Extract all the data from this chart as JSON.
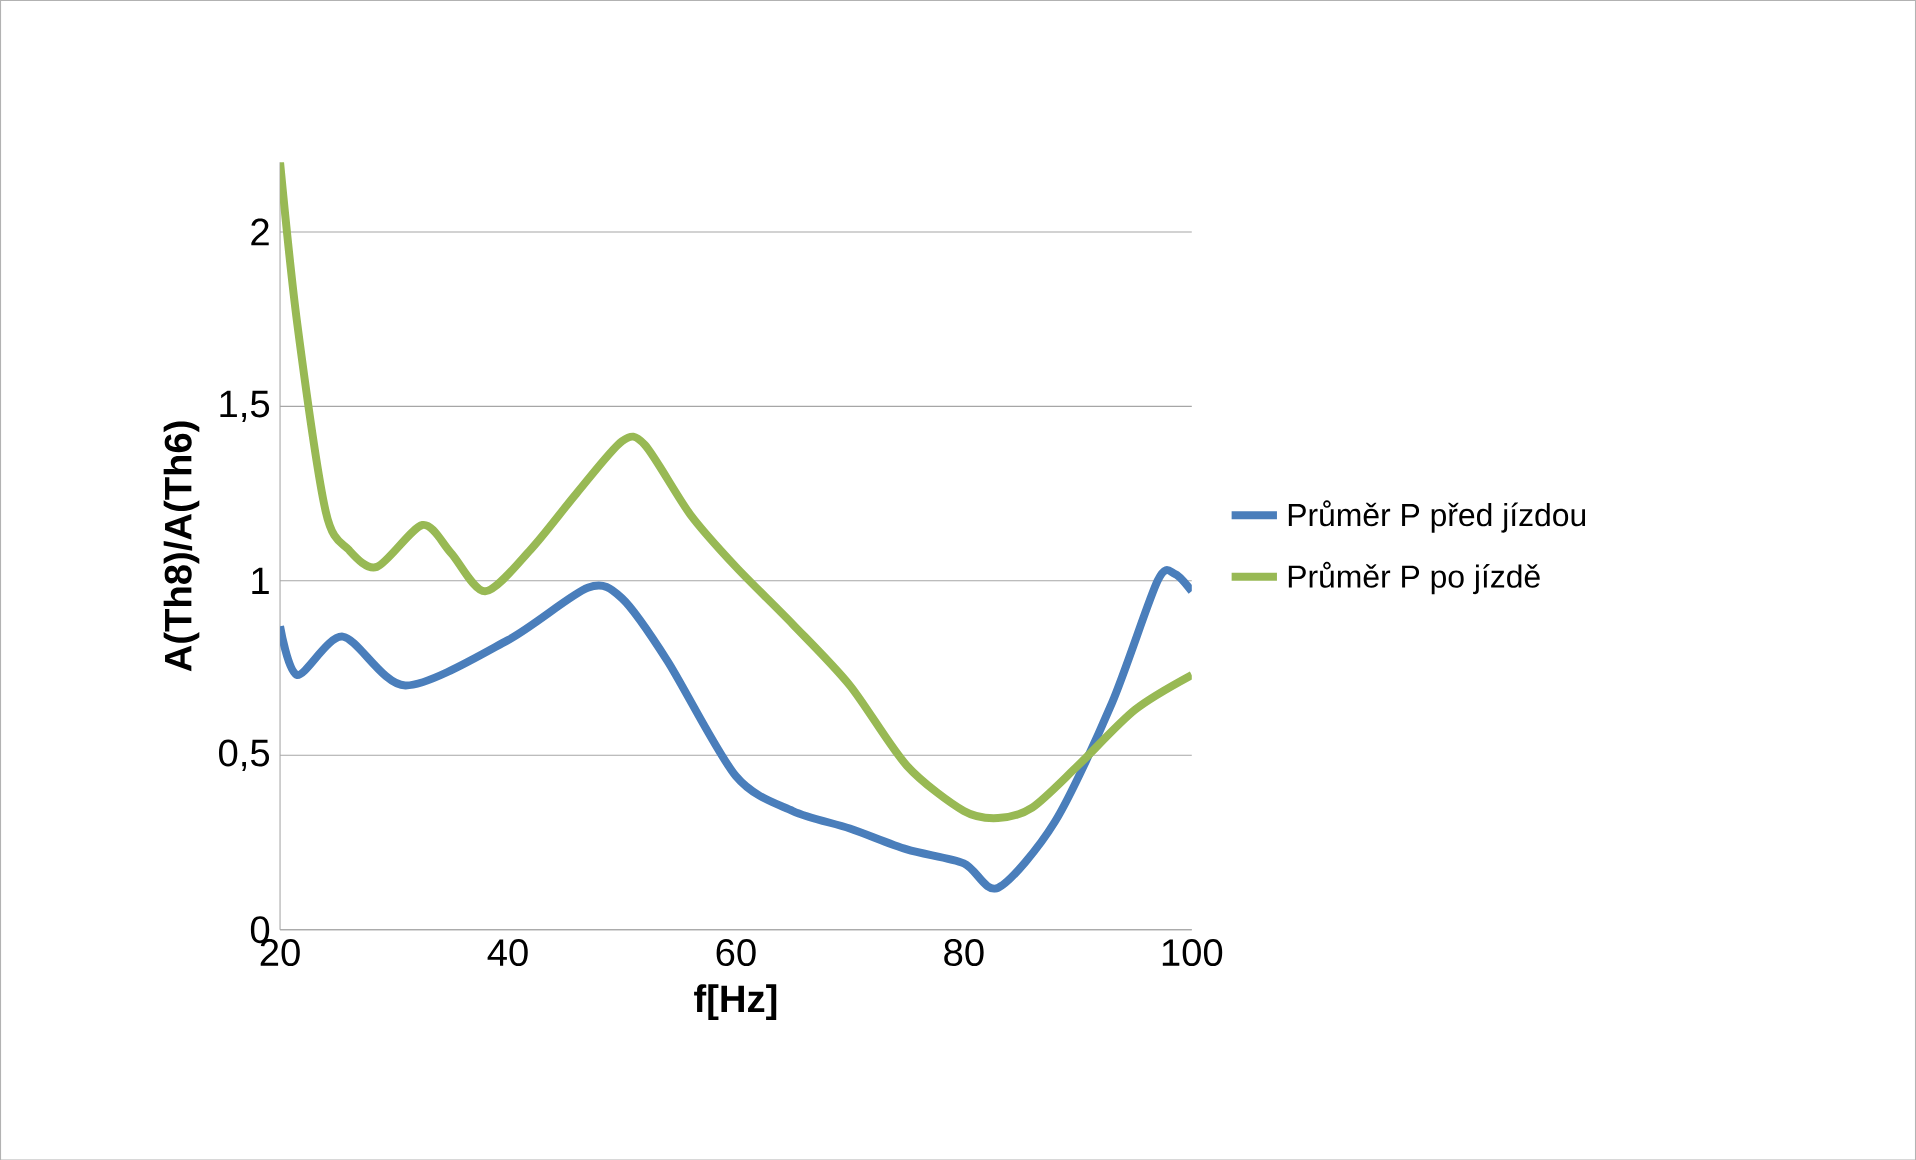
{
  "chart_data": {
    "type": "line",
    "xlabel": "f[Hz]",
    "ylabel": "A(Th8)/A(Th6)",
    "xlim": [
      20,
      100
    ],
    "xticks": [
      20,
      40,
      60,
      80,
      100
    ],
    "ylim": [
      0,
      2.2
    ],
    "yticks": [
      0,
      {
        "value": 0.5,
        "label": "0,5"
      },
      1,
      {
        "value": 1.5,
        "label": "1,5"
      },
      2
    ],
    "grid": "y",
    "legend": "right",
    "marker": "none",
    "line_style": "solid",
    "series": [
      {
        "name": "Průměr P před jízdou",
        "color": "#4a7ebb",
        "x": [
          20,
          21.5,
          25.5,
          31,
          40,
          47,
          50,
          54,
          60,
          65,
          70,
          75,
          80,
          83,
          88,
          93,
          97,
          98.5,
          100
        ],
        "values": [
          0.87,
          0.73,
          0.84,
          0.7,
          0.83,
          0.98,
          0.95,
          0.77,
          0.44,
          0.34,
          0.29,
          0.23,
          0.19,
          0.12,
          0.31,
          0.65,
          1.0,
          1.02,
          0.97
        ]
      },
      {
        "name": "Průměr P po jízdě",
        "color": "#98b954",
        "x": [
          20,
          21.5,
          24,
          26,
          28.5,
          32.5,
          35,
          38,
          42,
          46,
          50,
          52,
          56,
          60,
          65,
          70,
          75,
          80,
          83,
          86,
          90,
          95,
          100
        ],
        "values": [
          2.2,
          1.74,
          1.2,
          1.09,
          1.04,
          1.16,
          1.08,
          0.97,
          1.09,
          1.25,
          1.4,
          1.39,
          1.19,
          1.04,
          0.875,
          0.7,
          0.47,
          0.34,
          0.32,
          0.35,
          0.47,
          0.63,
          0.73
        ]
      }
    ]
  }
}
